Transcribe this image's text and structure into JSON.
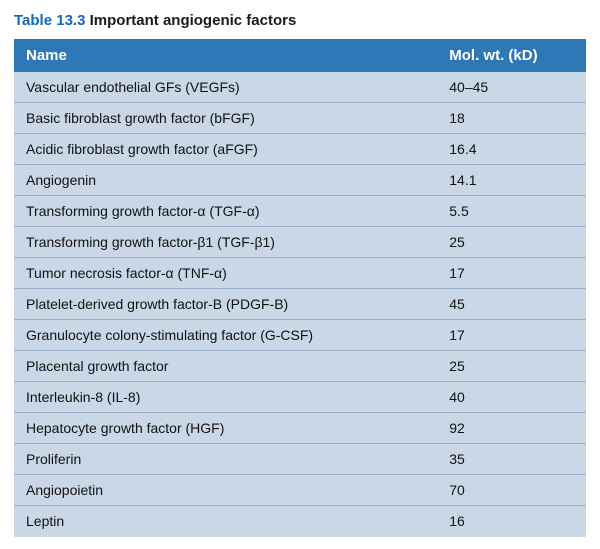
{
  "caption_number": "Table 13.3",
  "caption_text": "Important angiogenic factors",
  "caption_fontsize": 15,
  "caption_num_color": "#1568b3",
  "caption_txt_color": "#1a1a1a",
  "header_bg": "#2f78b7",
  "header_fg": "#ffffff",
  "header_fontsize": 15,
  "body_bg": "#cad7e7",
  "row_border_color": "#9db0c8",
  "body_fontsize": 14,
  "body_fg": "#111111",
  "columns": [
    "Name",
    "Mol. wt. (kD)"
  ],
  "rows": [
    [
      "Vascular endothelial GFs (VEGFs)",
      "40–45"
    ],
    [
      "Basic fibroblast growth factor (bFGF)",
      "18"
    ],
    [
      "Acidic fibroblast growth factor (aFGF)",
      "16.4"
    ],
    [
      "Angiogenin",
      "14.1"
    ],
    [
      "Transforming growth factor-α (TGF-α)",
      "5.5"
    ],
    [
      "Transforming growth factor-β1 (TGF-β1)",
      "25"
    ],
    [
      "Tumor necrosis factor-α (TNF-α)",
      "17"
    ],
    [
      "Platelet-derived growth factor-B (PDGF-B)",
      "45"
    ],
    [
      "Granulocyte colony-stimulating factor (G-CSF)",
      "17"
    ],
    [
      "Placental growth factor",
      "25"
    ],
    [
      "Interleukin-8 (IL-8)",
      "40"
    ],
    [
      "Hepatocyte growth factor (HGF)",
      "92"
    ],
    [
      "Proliferin",
      "35"
    ],
    [
      "Angiopoietin",
      "70"
    ],
    [
      "Leptin",
      "16"
    ]
  ]
}
